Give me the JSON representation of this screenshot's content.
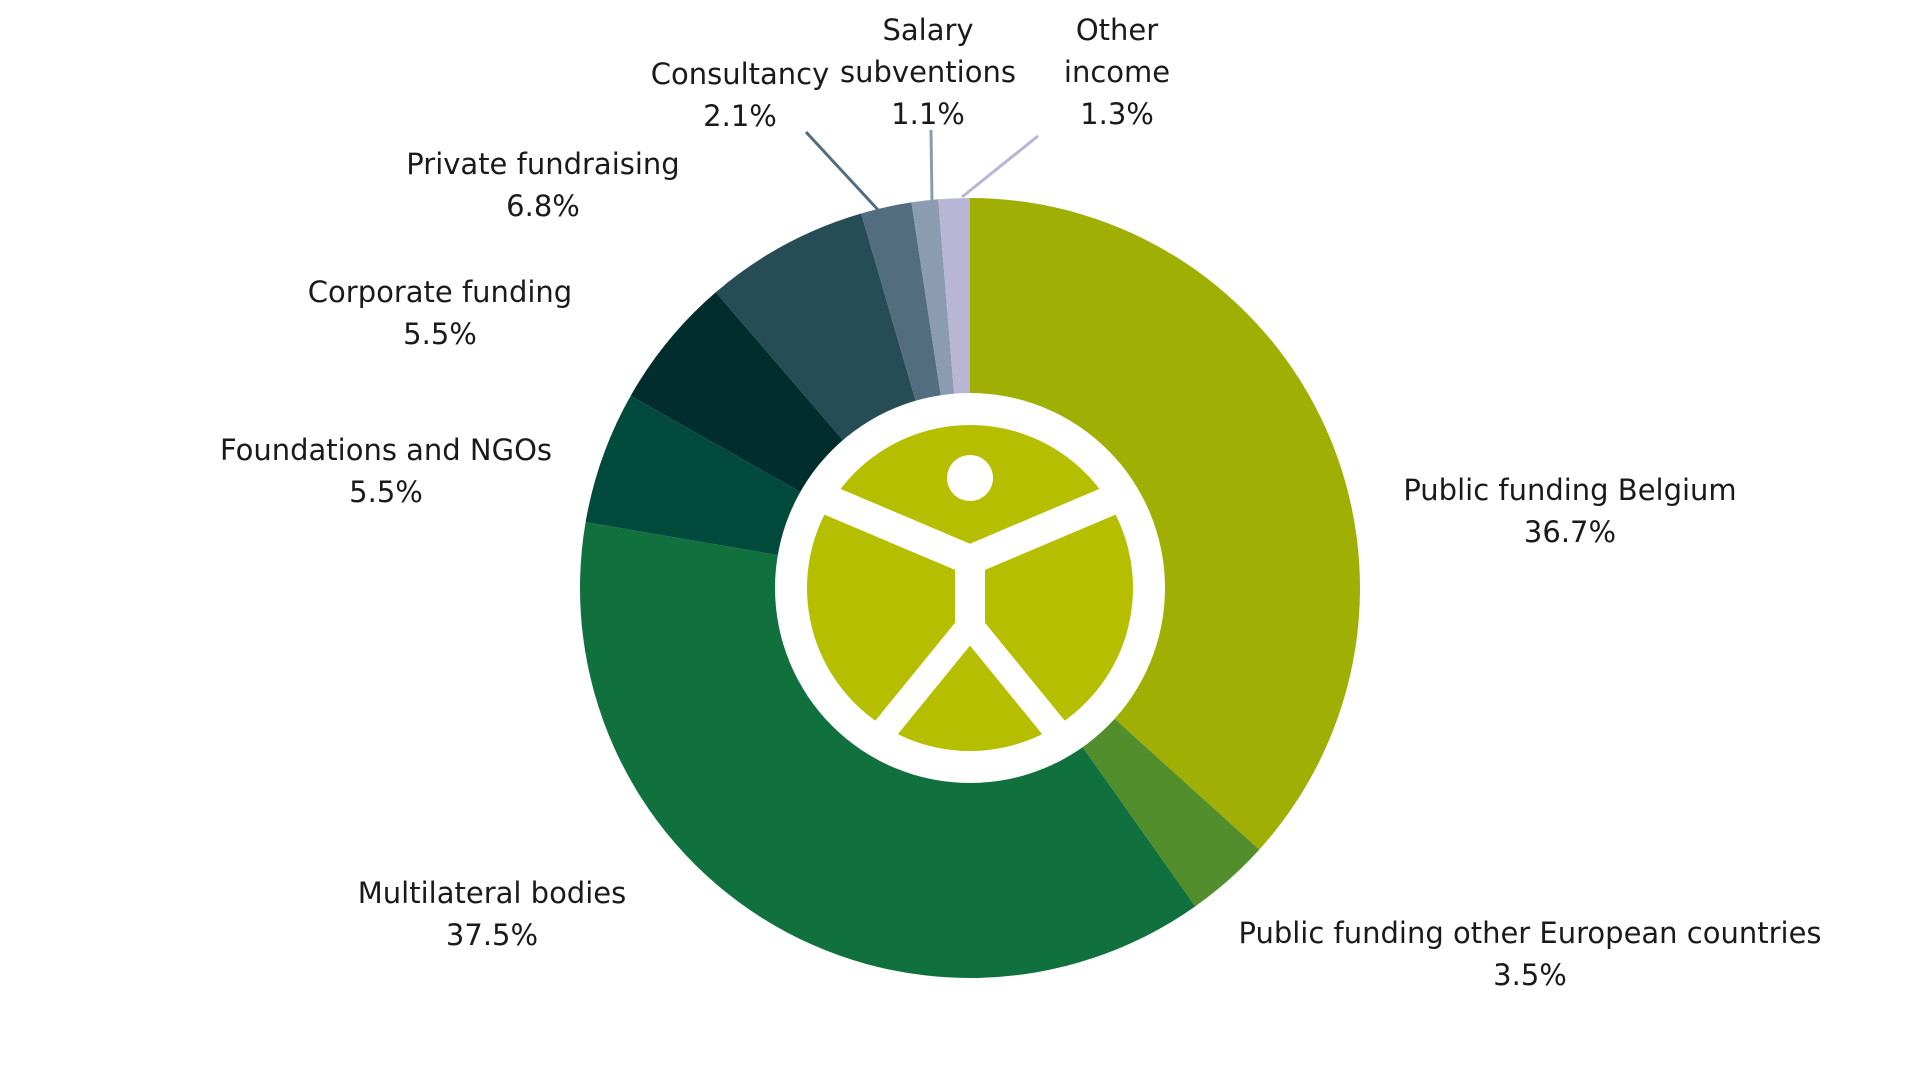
{
  "chart_data": {
    "type": "pie",
    "variant": "donut",
    "title": "",
    "start_angle_deg": 0,
    "direction": "clockwise",
    "legend": "none",
    "center_logo": {
      "description": "stylised human figure emblem in a white ring",
      "color": "#b5bf00",
      "ring_color": "#ffffff"
    },
    "slices": [
      {
        "label": "Public funding Belgium",
        "value": 36.7,
        "display": "36.7%",
        "color": "#9faf03"
      },
      {
        "label": "Public funding other European countries",
        "value": 3.5,
        "display": "3.5%",
        "color": "#528f2c"
      },
      {
        "label": "Multilateral bodies",
        "value": 37.5,
        "display": "37.5%",
        "color": "#10703e"
      },
      {
        "label": "Foundations and NGOs",
        "value": 5.5,
        "display": "5.5%",
        "color": "#014a3c"
      },
      {
        "label": "Corporate funding",
        "value": 5.5,
        "display": "5.5%",
        "color": "#012d2d"
      },
      {
        "label": "Private fundraising",
        "value": 6.8,
        "display": "6.8%",
        "color": "#264c55"
      },
      {
        "label": "Consultancy",
        "value": 2.1,
        "display": "2.1%",
        "color": "#526d7f"
      },
      {
        "label": "Salary subventions",
        "value": 1.1,
        "display": "1.1%",
        "color": "#8b9bb0"
      },
      {
        "label": "Other income",
        "value": 1.3,
        "display": "1.3%",
        "color": "#b8b5d5"
      }
    ]
  }
}
